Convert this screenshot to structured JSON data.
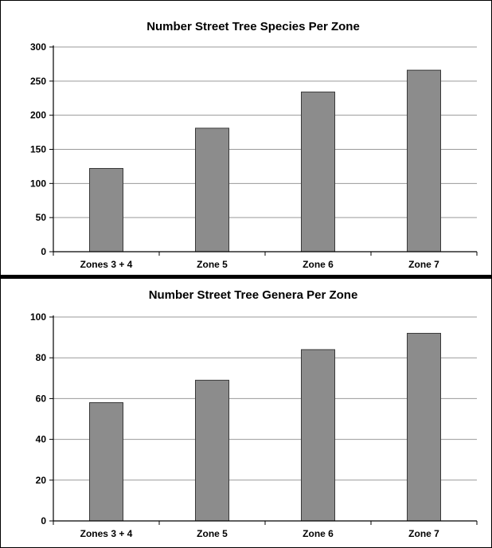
{
  "chart_data": [
    {
      "type": "bar",
      "title": "Number Street Tree Species Per Zone",
      "categories": [
        "Zones 3 + 4",
        "Zone 5",
        "Zone 6",
        "Zone 7"
      ],
      "values": [
        122,
        181,
        234,
        266
      ],
      "ylim": [
        0,
        300
      ],
      "yticks": [
        "0",
        "50",
        "100",
        "150",
        "200",
        "250",
        "300"
      ],
      "grid": true,
      "bar_color": "#8c8c8c"
    },
    {
      "type": "bar",
      "title": "Number Street Tree Genera Per Zone",
      "categories": [
        "Zones 3 + 4",
        "Zone 5",
        "Zone 6",
        "Zone 7"
      ],
      "values": [
        58,
        69,
        84,
        92
      ],
      "ylim": [
        0,
        100
      ],
      "yticks": [
        "0",
        "20",
        "40",
        "60",
        "80",
        "100"
      ],
      "grid": true,
      "bar_color": "#8c8c8c"
    }
  ]
}
